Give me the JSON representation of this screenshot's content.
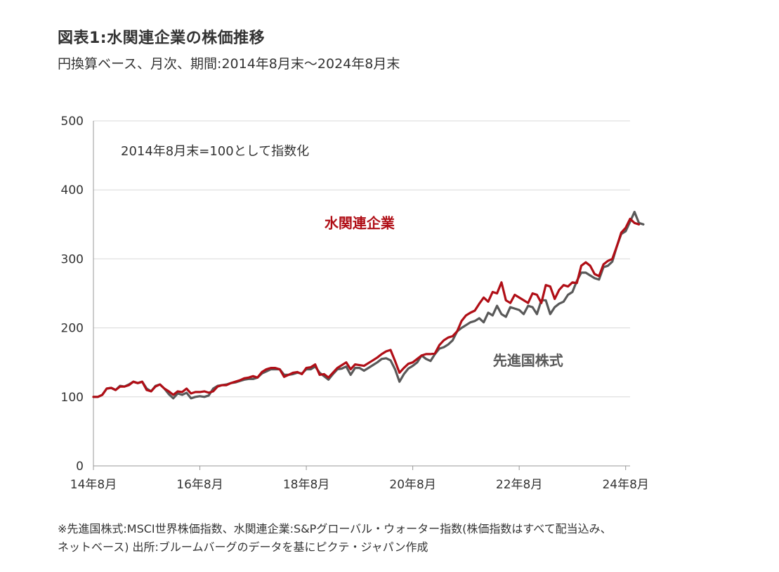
{
  "header": {
    "title": "図表1:水関連企業の株価推移",
    "subtitle": "円換算ベース、月次、期間:2014年8月末〜2024年8月末"
  },
  "chart_data": {
    "type": "line",
    "note": "2014年8月末=100として指数化",
    "ylim": [
      0,
      500
    ],
    "yticks": [
      "0",
      "100",
      "200",
      "300",
      "400",
      "500"
    ],
    "xlim": [
      0,
      121
    ],
    "xticks": [
      {
        "label": "14年8月",
        "x": 0
      },
      {
        "label": "16年8月",
        "x": 24
      },
      {
        "label": "18年8月",
        "x": 48
      },
      {
        "label": "20年8月",
        "x": 72
      },
      {
        "label": "22年8月",
        "x": 96
      },
      {
        "label": "24年8月",
        "x": 120
      }
    ],
    "grid": true,
    "series": [
      {
        "name": "水関連企業",
        "color": "#b00e16",
        "values": [
          100,
          100,
          103,
          112,
          113,
          110,
          115,
          115,
          117,
          122,
          120,
          122,
          110,
          108,
          115,
          118,
          112,
          108,
          103,
          108,
          107,
          112,
          105,
          107,
          107,
          108,
          106,
          108,
          115,
          117,
          117,
          120,
          122,
          124,
          127,
          128,
          130,
          128,
          136,
          140,
          142,
          142,
          140,
          129,
          132,
          135,
          136,
          133,
          142,
          143,
          147,
          132,
          133,
          128,
          135,
          142,
          146,
          150,
          140,
          147,
          146,
          145,
          149,
          153,
          157,
          162,
          166,
          168,
          152,
          135,
          142,
          148,
          150,
          155,
          160,
          162,
          162,
          163,
          175,
          182,
          186,
          188,
          195,
          210,
          218,
          222,
          225,
          235,
          244,
          238,
          252,
          250,
          266,
          240,
          236,
          248,
          244,
          240,
          236,
          250,
          248,
          236,
          262,
          260,
          242,
          255,
          262,
          260,
          266,
          265,
          290,
          295,
          290,
          278,
          275,
          292,
          297,
          300,
          318,
          338,
          345,
          358,
          352,
          350
        ],
        "label_x": 60,
        "label_y": 352
      },
      {
        "name": "先進国株式",
        "color": "#595959",
        "values": [
          100,
          100,
          103,
          112,
          113,
          110,
          116,
          115,
          118,
          122,
          120,
          122,
          112,
          108,
          116,
          118,
          112,
          104,
          98,
          105,
          103,
          106,
          98,
          100,
          101,
          100,
          102,
          112,
          116,
          117,
          118,
          120,
          121,
          123,
          125,
          126,
          126,
          128,
          134,
          137,
          140,
          140,
          140,
          132,
          132,
          133,
          135,
          134,
          140,
          140,
          144,
          135,
          130,
          125,
          133,
          140,
          141,
          144,
          132,
          142,
          142,
          138,
          142,
          146,
          150,
          155,
          156,
          153,
          140,
          122,
          133,
          141,
          145,
          150,
          160,
          155,
          152,
          162,
          170,
          172,
          176,
          182,
          195,
          200,
          204,
          208,
          210,
          214,
          208,
          222,
          218,
          232,
          220,
          216,
          230,
          228,
          226,
          220,
          232,
          230,
          220,
          240,
          240,
          220,
          230,
          235,
          238,
          248,
          252,
          268,
          280,
          280,
          276,
          272,
          270,
          288,
          290,
          296,
          318,
          336,
          340,
          354,
          368,
          352,
          350
        ],
        "label_x": 98,
        "label_y": 153
      }
    ]
  },
  "footnote": {
    "line1": "※先進国株式:MSCI世界株価指数、水関連企業:S&Pグローバル・ウォーター指数(株価指数はすべて配当込み、",
    "line2": "ネットベース) 出所:ブルームバーグのデータを基にピクテ・ジャパン作成"
  }
}
